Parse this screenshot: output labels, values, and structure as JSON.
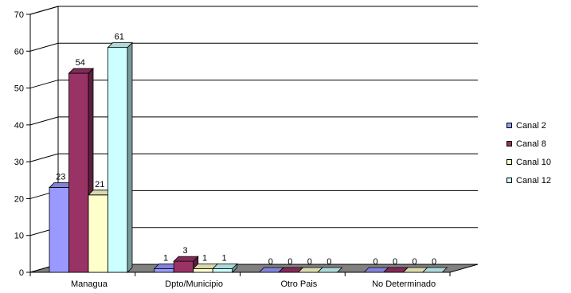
{
  "chart_data": {
    "type": "bar",
    "categories": [
      "Managua",
      "Dpto/Municipio",
      "Otro Pais",
      "No Determinado"
    ],
    "series": [
      {
        "name": "Canal 2",
        "values": [
          23,
          1,
          0,
          0
        ],
        "color": "#9999FF"
      },
      {
        "name": "Canal 8",
        "values": [
          54,
          3,
          0,
          0
        ],
        "color": "#993366"
      },
      {
        "name": "Canal 10",
        "values": [
          21,
          1,
          0,
          0
        ],
        "color": "#FFFFCC"
      },
      {
        "name": "Canal 12",
        "values": [
          61,
          1,
          0,
          0
        ],
        "color": "#CCFFFF"
      }
    ],
    "yticks": [
      "0",
      "10",
      "20",
      "30",
      "40",
      "50",
      "60",
      "70"
    ],
    "ylim": [
      0,
      70
    ],
    "grid": true,
    "three_d": true,
    "legend_position": "right"
  }
}
